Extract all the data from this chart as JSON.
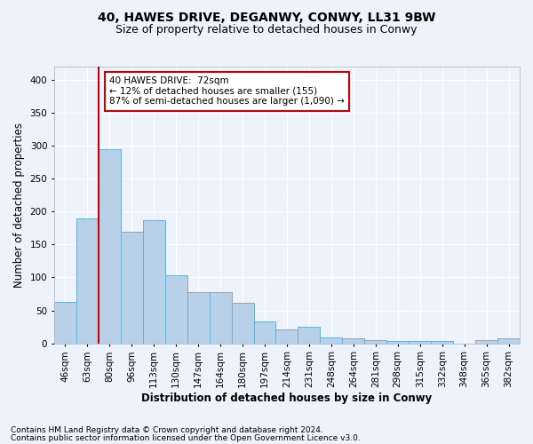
{
  "title_line1": "40, HAWES DRIVE, DEGANWY, CONWY, LL31 9BW",
  "title_line2": "Size of property relative to detached houses in Conwy",
  "xlabel": "Distribution of detached houses by size in Conwy",
  "ylabel": "Number of detached properties",
  "bar_color": "#b8d0e8",
  "bar_edge_color": "#6aaed6",
  "vline_color": "#cc0000",
  "vline_x_idx": 1,
  "vline_x_val": 72,
  "categories": [
    "46sqm",
    "63sqm",
    "80sqm",
    "96sqm",
    "113sqm",
    "130sqm",
    "147sqm",
    "164sqm",
    "180sqm",
    "197sqm",
    "214sqm",
    "231sqm",
    "248sqm",
    "264sqm",
    "281sqm",
    "298sqm",
    "315sqm",
    "332sqm",
    "348sqm",
    "365sqm",
    "382sqm"
  ],
  "values": [
    63,
    190,
    295,
    170,
    187,
    103,
    78,
    78,
    61,
    33,
    21,
    25,
    9,
    8,
    5,
    4,
    4,
    4,
    0,
    5,
    8
  ],
  "ylim": [
    0,
    420
  ],
  "yticks": [
    0,
    50,
    100,
    150,
    200,
    250,
    300,
    350,
    400
  ],
  "annotation_text": "40 HAWES DRIVE:  72sqm\n← 12% of detached houses are smaller (155)\n87% of semi-detached houses are larger (1,090) →",
  "annotation_box_color": "#ffffff",
  "annotation_border_color": "#cc0000",
  "footnote1": "Contains HM Land Registry data © Crown copyright and database right 2024.",
  "footnote2": "Contains public sector information licensed under the Open Government Licence v3.0.",
  "background_color": "#eef2fb",
  "grid_color": "#ffffff",
  "title_fontsize": 10,
  "subtitle_fontsize": 9,
  "axis_label_fontsize": 8.5,
  "tick_fontsize": 7.5,
  "annotation_fontsize": 7.5,
  "footnote_fontsize": 6.5
}
